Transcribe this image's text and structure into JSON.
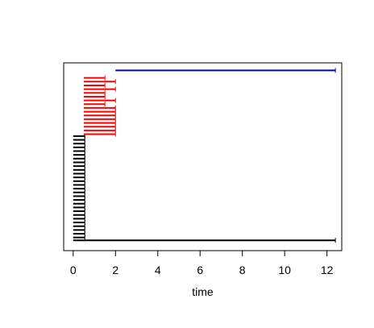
{
  "chart_data": {
    "type": "timeline",
    "title": "",
    "xlabel": "time",
    "ylabel": "",
    "xlim": [
      -0.45,
      12.7
    ],
    "ylim": [
      0,
      100
    ],
    "x_ticks": [
      "0",
      "2",
      "4",
      "6",
      "8",
      "10",
      "12"
    ],
    "grid": false,
    "legend": "none",
    "colors": {
      "black": "#000000",
      "red": "#ff0000",
      "blue": "#0000cd"
    },
    "groups": [
      {
        "color": "#000000",
        "segments": [
          {
            "start": 0.0,
            "end": 12.4,
            "y": 5.5
          },
          {
            "start": 0.0,
            "end": 0.55,
            "y": 7
          },
          {
            "start": 0.0,
            "end": 0.55,
            "y": 9
          },
          {
            "start": 0.0,
            "end": 0.55,
            "y": 11
          },
          {
            "start": 0.0,
            "end": 0.55,
            "y": 13
          },
          {
            "start": 0.0,
            "end": 0.55,
            "y": 15
          },
          {
            "start": 0.0,
            "end": 0.55,
            "y": 17
          },
          {
            "start": 0.0,
            "end": 0.55,
            "y": 19
          },
          {
            "start": 0.0,
            "end": 0.55,
            "y": 21
          },
          {
            "start": 0.0,
            "end": 0.55,
            "y": 23
          },
          {
            "start": 0.0,
            "end": 0.55,
            "y": 25
          },
          {
            "start": 0.0,
            "end": 0.55,
            "y": 27
          },
          {
            "start": 0.0,
            "end": 0.55,
            "y": 29
          },
          {
            "start": 0.0,
            "end": 0.55,
            "y": 31
          },
          {
            "start": 0.0,
            "end": 0.55,
            "y": 33
          },
          {
            "start": 0.0,
            "end": 0.55,
            "y": 35
          },
          {
            "start": 0.0,
            "end": 0.55,
            "y": 37
          },
          {
            "start": 0.0,
            "end": 0.55,
            "y": 39
          },
          {
            "start": 0.0,
            "end": 0.55,
            "y": 41
          },
          {
            "start": 0.0,
            "end": 0.55,
            "y": 43
          },
          {
            "start": 0.0,
            "end": 0.55,
            "y": 45
          },
          {
            "start": 0.0,
            "end": 0.55,
            "y": 47
          },
          {
            "start": 0.0,
            "end": 0.55,
            "y": 49
          },
          {
            "start": 0.0,
            "end": 0.55,
            "y": 51
          },
          {
            "start": 0.0,
            "end": 0.55,
            "y": 53
          },
          {
            "start": 0.0,
            "end": 0.55,
            "y": 55
          },
          {
            "start": 0.0,
            "end": 0.55,
            "y": 57
          },
          {
            "start": 0.0,
            "end": 0.55,
            "y": 59
          },
          {
            "start": 0.0,
            "end": 0.55,
            "y": 61
          }
        ]
      },
      {
        "color": "#ff0000",
        "segments": [
          {
            "start": 0.5,
            "end": 2.0,
            "y": 62
          },
          {
            "start": 0.5,
            "end": 2.0,
            "y": 64
          },
          {
            "start": 0.5,
            "end": 2.0,
            "y": 66
          },
          {
            "start": 0.5,
            "end": 2.0,
            "y": 68
          },
          {
            "start": 0.5,
            "end": 2.0,
            "y": 70
          },
          {
            "start": 0.5,
            "end": 2.0,
            "y": 72
          },
          {
            "start": 0.5,
            "end": 2.0,
            "y": 74
          },
          {
            "start": 0.5,
            "end": 2.0,
            "y": 76
          },
          {
            "start": 0.5,
            "end": 1.5,
            "y": 78
          },
          {
            "start": 0.5,
            "end": 2.0,
            "y": 80
          },
          {
            "start": 0.5,
            "end": 1.5,
            "y": 82
          },
          {
            "start": 0.5,
            "end": 1.5,
            "y": 84
          },
          {
            "start": 0.5,
            "end": 2.0,
            "y": 86
          },
          {
            "start": 0.5,
            "end": 1.5,
            "y": 88
          },
          {
            "start": 0.5,
            "end": 2.0,
            "y": 90
          },
          {
            "start": 0.5,
            "end": 1.5,
            "y": 92
          }
        ]
      },
      {
        "color": "#0000cd",
        "segments": [
          {
            "start": 2.0,
            "end": 12.4,
            "y": 96
          }
        ]
      }
    ]
  }
}
